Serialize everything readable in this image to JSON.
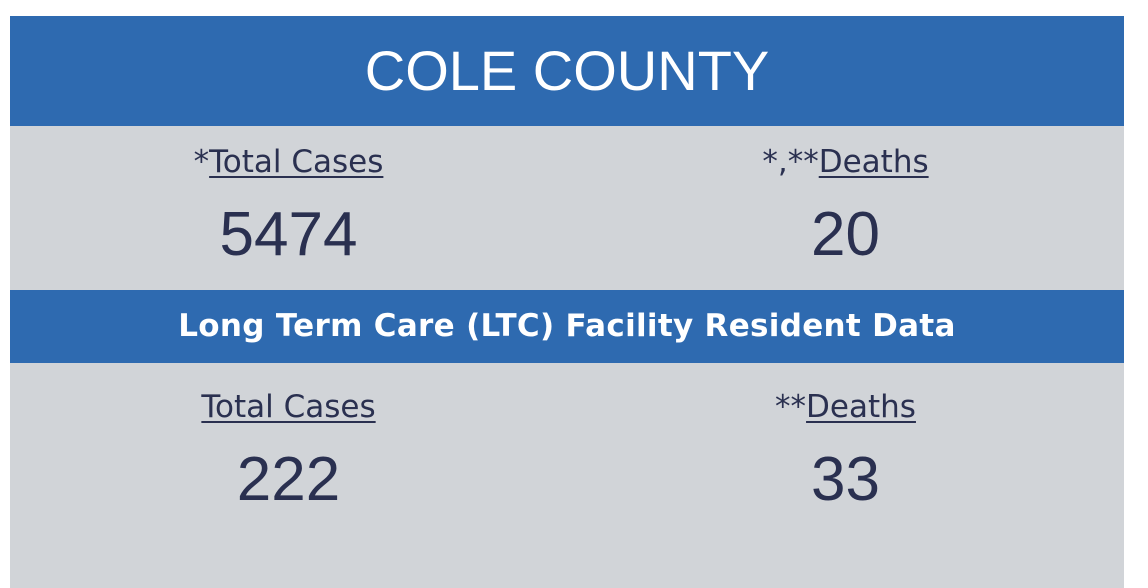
{
  "header": {
    "title": "COLE COUNTY"
  },
  "county": {
    "stats": [
      {
        "prefix": "*",
        "label": "Total Cases",
        "value": 5474
      },
      {
        "prefix": "*,**",
        "label": "Deaths",
        "value": 20
      }
    ]
  },
  "ltc": {
    "title": "Long Term Care (LTC) Facility Resident Data",
    "stats": [
      {
        "label": "Total Cases",
        "value": 222
      },
      {
        "prefix": "**",
        "label": "Deaths",
        "value": 33
      }
    ]
  }
}
